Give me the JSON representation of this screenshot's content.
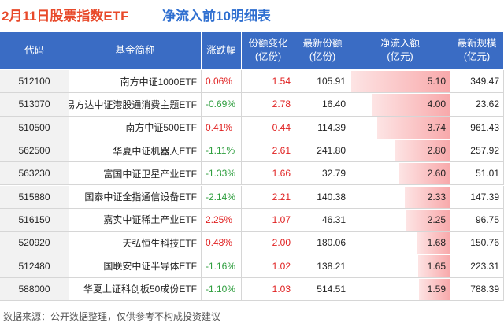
{
  "header": {
    "title_date": "2月11日股票指数ETF",
    "title_main": "净流入前10明细表"
  },
  "table": {
    "columns": [
      [
        "代码"
      ],
      [
        "基金简称"
      ],
      [
        "涨跌幅"
      ],
      [
        "份额变化",
        "(亿份)"
      ],
      [
        "最新份额",
        "(亿份)"
      ],
      [
        "净流入额",
        "(亿元)"
      ],
      [
        "最新规模",
        "(亿元)"
      ]
    ],
    "rows": [
      [
        "512100",
        "南方中证1000ETF",
        "0.06%",
        "1.54",
        "105.91",
        "5.10",
        "349.47"
      ],
      [
        "513070",
        "易方达中证港股通消费主题ETF",
        "-0.69%",
        "2.78",
        "16.40",
        "4.00",
        "23.62"
      ],
      [
        "510500",
        "南方中证500ETF",
        "0.41%",
        "0.44",
        "114.39",
        "3.74",
        "961.43"
      ],
      [
        "562500",
        "华夏中证机器人ETF",
        "-1.11%",
        "2.61",
        "241.80",
        "2.80",
        "257.92"
      ],
      [
        "563230",
        "富国中证卫星产业ETF",
        "-1.33%",
        "1.66",
        "32.79",
        "2.60",
        "51.01"
      ],
      [
        "515880",
        "国泰中证全指通信设备ETF",
        "-2.14%",
        "2.21",
        "140.38",
        "2.33",
        "147.39"
      ],
      [
        "516150",
        "嘉实中证稀土产业ETF",
        "2.25%",
        "1.07",
        "46.31",
        "2.25",
        "96.75"
      ],
      [
        "520920",
        "天弘恒生科技ETF",
        "0.48%",
        "2.00",
        "180.06",
        "1.68",
        "150.76"
      ],
      [
        "512480",
        "国联安中证半导体ETF",
        "-1.16%",
        "1.02",
        "138.21",
        "1.65",
        "223.31"
      ],
      [
        "588000",
        "华夏上证科创板50成份ETF",
        "-1.10%",
        "1.03",
        "514.51",
        "1.59",
        "788.39"
      ]
    ]
  },
  "footer": {
    "source": "数据来源：公开数据整理，仅供参考不构成投资建议"
  }
}
